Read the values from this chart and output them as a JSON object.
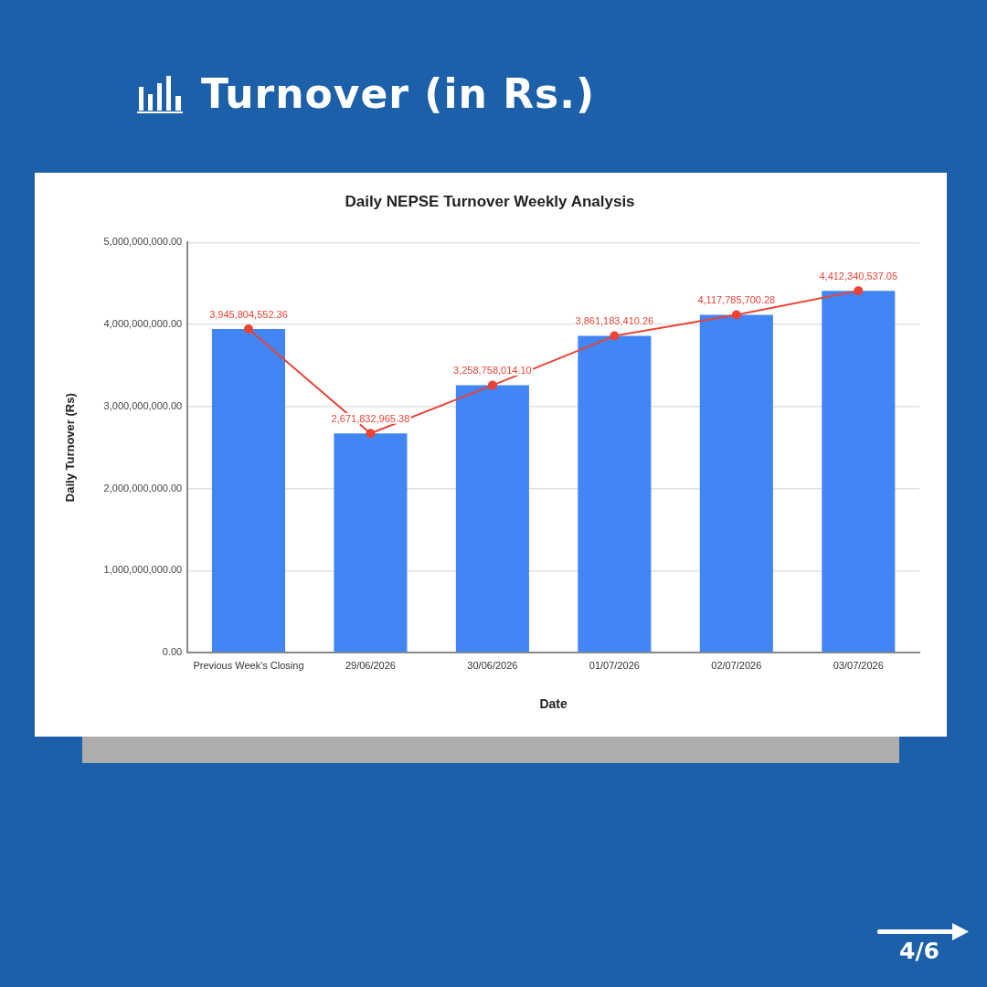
{
  "chart_data": {
    "type": "bar",
    "title": "Turnover (in Rs.)",
    "subtitle": "Daily NEPSE Turnover Weekly Analysis",
    "xlabel": "Date",
    "ylabel": "Daily Turnover (Rs)",
    "categories": [
      "Previous Week's Closing",
      "29/06/2026",
      "30/06/2026",
      "01/07/2026",
      "02/07/2026",
      "03/07/2026"
    ],
    "series": [
      {
        "color": "#4285f4",
        "values": [
          3945804552.36,
          2671832965.38,
          3258758014.1,
          3861183410.26,
          4117785700.28,
          4412340537.05
        ]
      },
      {
        "type": "line",
        "color": "#ea4335",
        "marker": "circle",
        "values": [
          3945804552.36,
          2671832965.38,
          3258758014.1,
          3861183410.26,
          4117785700.28,
          4412340537.05
        ],
        "value_labels": [
          "3,945,804,552.36",
          "2,671,832,965.38",
          "3,258,758,014.10",
          "3,861,183,410.26",
          "4,117,785,700.28",
          "4,412,340,537.05"
        ]
      }
    ],
    "ylim": [
      0,
      5000000000
    ],
    "yticks": [
      {
        "value": 0,
        "label": "0.00"
      },
      {
        "value": 1000000000,
        "label": "1,000,000,000.00"
      },
      {
        "value": 2000000000,
        "label": "2,000,000,000.00"
      },
      {
        "value": 3000000000,
        "label": "3,000,000,000.00"
      },
      {
        "value": 4000000000,
        "label": "4,000,000,000.00"
      },
      {
        "value": 5000000000,
        "label": "5,000,000,000.00"
      }
    ],
    "grid": "y",
    "legend": false,
    "annotations": [
      "4/6"
    ]
  }
}
